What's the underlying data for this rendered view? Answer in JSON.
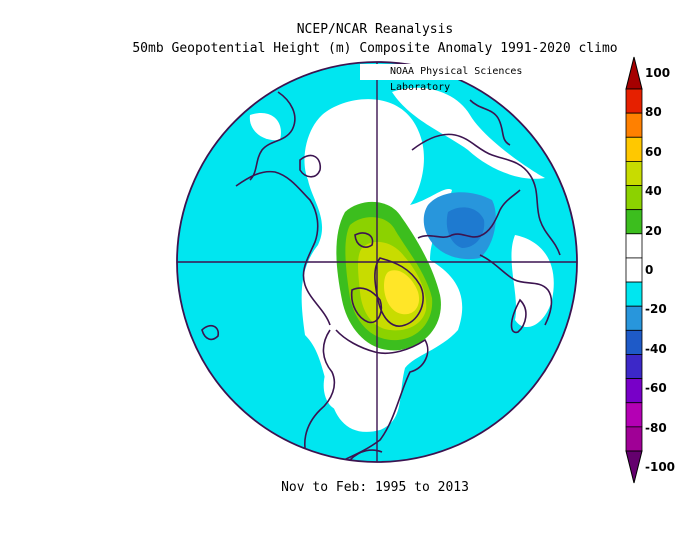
{
  "title_line1": "NCEP/NCAR Reanalysis",
  "title_line2": "50mb Geopotential Height (m) Composite Anomaly 1991-2020 climo",
  "lab_label": "NOAA Physical Sciences Laboratory",
  "footer": "Nov to Feb: 1995 to 2013",
  "colorbar": {
    "ticks": [
      "100",
      "80",
      "60",
      "40",
      "20",
      "0",
      "-20",
      "-40",
      "-60",
      "-80",
      "-100"
    ],
    "colors": [
      "#a50000",
      "#e62000",
      "#ff8000",
      "#ffc800",
      "#c8dc00",
      "#8cd200",
      "#3cbe1e",
      "#ffffff",
      "#ffffff",
      "#00e6f0",
      "#2896dc",
      "#1e5ac8",
      "#3c28c8",
      "#7800c8",
      "#b400b4",
      "#a00096",
      "#64006e"
    ]
  },
  "map": {
    "projection": "north polar stereographic",
    "colors": {
      "land_outline": "#3c1450",
      "background": "#00e6f0",
      "positive_low": "#3cbe1e",
      "positive_mid": "#c8dc00",
      "positive_high": "#ffe628",
      "negative": "#2896dc"
    }
  }
}
